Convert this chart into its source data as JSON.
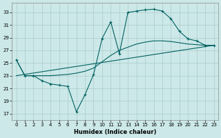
{
  "xlabel": "Humidex (Indice chaleur)",
  "background_color": "#cce8e8",
  "grid_color": "#aacccc",
  "line_color": "#006060",
  "xlim": [
    -0.5,
    23.5
  ],
  "ylim": [
    16.0,
    34.5
  ],
  "yticks": [
    17,
    19,
    21,
    23,
    25,
    27,
    29,
    31,
    33
  ],
  "xticks": [
    0,
    1,
    2,
    3,
    4,
    5,
    6,
    7,
    8,
    9,
    10,
    11,
    12,
    13,
    14,
    15,
    16,
    17,
    18,
    19,
    20,
    21,
    22,
    23
  ],
  "zigzag_x": [
    0,
    1,
    2,
    3,
    4,
    5,
    6,
    7,
    8,
    9,
    10,
    11,
    12,
    13,
    14,
    15,
    16,
    17,
    18,
    19,
    20,
    21,
    22,
    23
  ],
  "zigzag_y": [
    25.5,
    23.0,
    23.0,
    22.2,
    21.7,
    21.5,
    21.3,
    17.3,
    20.0,
    23.2,
    28.9,
    31.5,
    26.5,
    33.0,
    33.2,
    33.4,
    33.5,
    33.2,
    32.0,
    30.0,
    28.8,
    28.5,
    27.8,
    27.8
  ],
  "smooth_x": [
    0,
    1,
    2,
    3,
    4,
    5,
    6,
    7,
    8,
    9,
    10,
    11,
    12,
    13,
    14,
    15,
    16,
    17,
    18,
    19,
    20,
    21,
    22,
    23
  ],
  "smooth_y": [
    25.5,
    23.0,
    23.0,
    23.0,
    23.0,
    23.1,
    23.2,
    23.4,
    23.7,
    24.2,
    25.2,
    26.2,
    27.0,
    27.5,
    28.0,
    28.3,
    28.5,
    28.5,
    28.4,
    28.2,
    28.0,
    27.9,
    27.8,
    27.8
  ],
  "trend_x": [
    0,
    23
  ],
  "trend_y": [
    23.0,
    27.8
  ]
}
